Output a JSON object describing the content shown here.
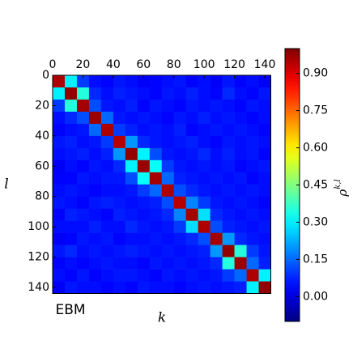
{
  "chart_data": {
    "type": "heatmap",
    "annotation": "EBM",
    "x_label": "k",
    "y_label": "l",
    "colorbar_label": {
      "base": "ρ",
      "sup": "k,l"
    },
    "colormap": "jet",
    "xlim": [
      0,
      144
    ],
    "ylim": [
      0,
      144
    ],
    "xticks": [
      0,
      20,
      40,
      60,
      80,
      100,
      120,
      140
    ],
    "yticks": [
      0,
      20,
      40,
      60,
      80,
      100,
      120,
      140
    ],
    "y_inverted": true,
    "clim": [
      -0.1,
      1.0
    ],
    "cticks": [
      {
        "value": 0,
        "label": "0.00"
      },
      {
        "value": 0.15,
        "label": "0.15"
      },
      {
        "value": 0.3,
        "label": "0.30"
      },
      {
        "value": 0.45,
        "label": "0.45"
      },
      {
        "value": 0.6,
        "label": "0.60"
      },
      {
        "value": 0.75,
        "label": "0.75"
      },
      {
        "value": 0.9,
        "label": "0.90"
      }
    ],
    "values": [
      [
        0.95,
        0.3,
        0.1,
        0.05,
        0.04,
        0.06,
        0.05,
        0.03,
        0.04,
        0.05,
        0.06,
        0.04,
        0.05,
        0.03,
        0.06,
        0.04,
        0.05,
        0.03
      ],
      [
        0.3,
        0.98,
        0.35,
        0.08,
        0.05,
        0.07,
        0.06,
        0.05,
        0.04,
        0.06,
        0.05,
        0.07,
        0.05,
        0.04,
        0.08,
        0.05,
        0.04,
        0.06
      ],
      [
        0.1,
        0.35,
        0.96,
        0.12,
        0.06,
        0.05,
        0.07,
        0.04,
        0.06,
        0.05,
        0.04,
        0.06,
        0.05,
        0.06,
        0.05,
        0.04,
        0.06,
        0.05
      ],
      [
        0.05,
        0.08,
        0.12,
        0.97,
        0.15,
        0.06,
        0.05,
        0.06,
        0.05,
        0.04,
        0.06,
        0.05,
        0.07,
        0.05,
        0.06,
        0.05,
        0.04,
        0.05
      ],
      [
        0.04,
        0.05,
        0.06,
        0.15,
        0.95,
        0.1,
        0.07,
        0.05,
        0.06,
        0.05,
        0.07,
        0.04,
        0.05,
        0.06,
        0.05,
        0.06,
        0.05,
        0.04
      ],
      [
        0.06,
        0.07,
        0.05,
        0.06,
        0.1,
        0.94,
        0.2,
        0.08,
        0.06,
        0.05,
        0.06,
        0.07,
        0.05,
        0.04,
        0.06,
        0.05,
        0.06,
        0.05
      ],
      [
        0.05,
        0.06,
        0.07,
        0.05,
        0.07,
        0.2,
        0.98,
        0.3,
        0.12,
        0.06,
        0.05,
        0.06,
        0.08,
        0.05,
        0.07,
        0.05,
        0.06,
        0.04
      ],
      [
        0.03,
        0.05,
        0.04,
        0.06,
        0.05,
        0.08,
        0.3,
        0.97,
        0.32,
        0.1,
        0.06,
        0.05,
        0.06,
        0.05,
        0.06,
        0.04,
        0.05,
        0.06
      ],
      [
        0.04,
        0.04,
        0.06,
        0.05,
        0.06,
        0.06,
        0.12,
        0.32,
        0.96,
        0.15,
        0.07,
        0.06,
        0.05,
        0.06,
        0.05,
        0.06,
        0.04,
        0.05
      ],
      [
        0.05,
        0.06,
        0.05,
        0.04,
        0.05,
        0.05,
        0.06,
        0.1,
        0.15,
        0.95,
        0.12,
        0.08,
        0.06,
        0.05,
        0.06,
        0.05,
        0.06,
        0.05
      ],
      [
        0.06,
        0.05,
        0.04,
        0.06,
        0.07,
        0.06,
        0.05,
        0.06,
        0.07,
        0.12,
        0.94,
        0.18,
        0.1,
        0.06,
        0.05,
        0.06,
        0.05,
        0.04
      ],
      [
        0.04,
        0.07,
        0.06,
        0.05,
        0.04,
        0.07,
        0.06,
        0.05,
        0.06,
        0.08,
        0.18,
        0.96,
        0.28,
        0.08,
        0.06,
        0.05,
        0.06,
        0.05
      ],
      [
        0.05,
        0.05,
        0.05,
        0.07,
        0.05,
        0.05,
        0.08,
        0.06,
        0.05,
        0.06,
        0.1,
        0.28,
        0.95,
        0.12,
        0.07,
        0.06,
        0.05,
        0.06
      ],
      [
        0.03,
        0.04,
        0.06,
        0.05,
        0.06,
        0.04,
        0.05,
        0.05,
        0.06,
        0.05,
        0.06,
        0.08,
        0.12,
        0.96,
        0.2,
        0.08,
        0.06,
        0.05
      ],
      [
        0.06,
        0.08,
        0.05,
        0.06,
        0.05,
        0.06,
        0.07,
        0.06,
        0.05,
        0.06,
        0.05,
        0.06,
        0.07,
        0.2,
        0.98,
        0.35,
        0.1,
        0.06
      ],
      [
        0.04,
        0.05,
        0.04,
        0.05,
        0.06,
        0.05,
        0.05,
        0.04,
        0.06,
        0.05,
        0.06,
        0.05,
        0.06,
        0.08,
        0.35,
        0.97,
        0.15,
        0.07
      ],
      [
        0.05,
        0.04,
        0.06,
        0.04,
        0.05,
        0.06,
        0.06,
        0.05,
        0.04,
        0.06,
        0.05,
        0.06,
        0.05,
        0.06,
        0.1,
        0.15,
        0.95,
        0.3
      ],
      [
        0.03,
        0.06,
        0.05,
        0.05,
        0.04,
        0.05,
        0.04,
        0.06,
        0.05,
        0.05,
        0.04,
        0.05,
        0.06,
        0.05,
        0.06,
        0.07,
        0.3,
        0.98
      ]
    ]
  }
}
